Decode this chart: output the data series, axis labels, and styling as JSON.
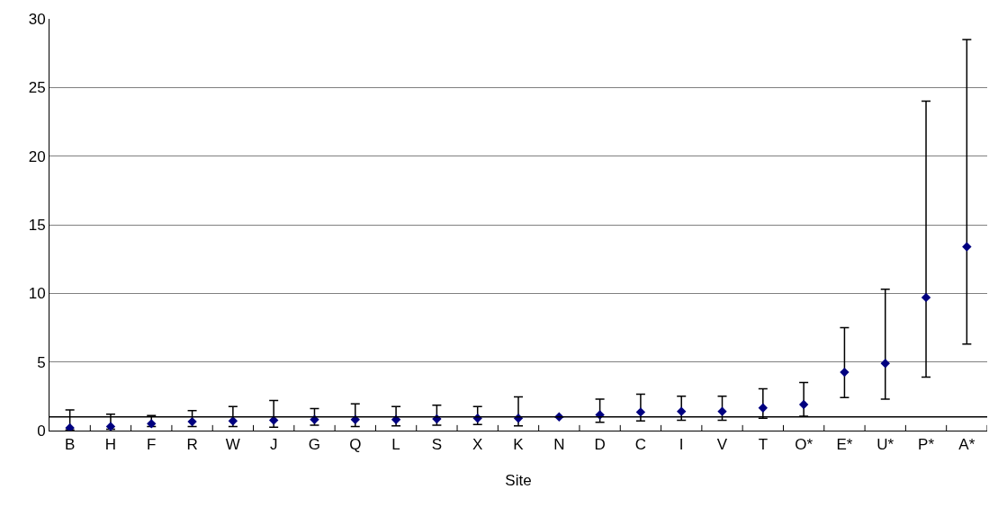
{
  "chart_data": {
    "type": "scatter",
    "xlabel": "Site",
    "categories": [
      "B",
      "H",
      "F",
      "R",
      "W",
      "J",
      "G",
      "Q",
      "L",
      "S",
      "X",
      "K",
      "N",
      "D",
      "C",
      "I",
      "V",
      "T",
      "O*",
      "E*",
      "U*",
      "P*",
      "A*"
    ],
    "series": [
      {
        "color": "#000080",
        "values": [
          0.2,
          0.3,
          0.5,
          0.65,
          0.7,
          0.75,
          0.8,
          0.8,
          0.8,
          0.85,
          0.9,
          0.9,
          1.0,
          1.15,
          1.35,
          1.4,
          1.4,
          1.65,
          1.9,
          4.25,
          4.9,
          9.7,
          13.4
        ],
        "errors": [
          [
            0.05,
            1.5
          ],
          [
            0.1,
            1.2
          ],
          [
            0.3,
            1.1
          ],
          [
            0.3,
            1.45
          ],
          [
            0.3,
            1.75
          ],
          [
            0.25,
            2.2
          ],
          [
            0.4,
            1.6
          ],
          [
            0.3,
            1.95
          ],
          [
            0.35,
            1.75
          ],
          [
            0.4,
            1.85
          ],
          [
            0.45,
            1.75
          ],
          [
            0.35,
            2.45
          ],
          null,
          [
            0.6,
            2.3
          ],
          [
            0.7,
            2.65
          ],
          [
            0.75,
            2.5
          ],
          [
            0.75,
            2.5
          ],
          [
            0.9,
            3.05
          ],
          [
            1.05,
            3.5
          ],
          [
            2.4,
            7.5
          ],
          [
            2.3,
            10.3
          ],
          [
            3.9,
            24
          ],
          [
            6.3,
            28.5
          ]
        ]
      }
    ],
    "ylim": [
      0,
      30
    ],
    "yticks": [
      0,
      5,
      10,
      15,
      20,
      25,
      30
    ],
    "grid": "y",
    "marker": "diamond",
    "ref_lines": [
      {
        "axis": "y",
        "value": 1,
        "color": "#000000"
      }
    ]
  }
}
